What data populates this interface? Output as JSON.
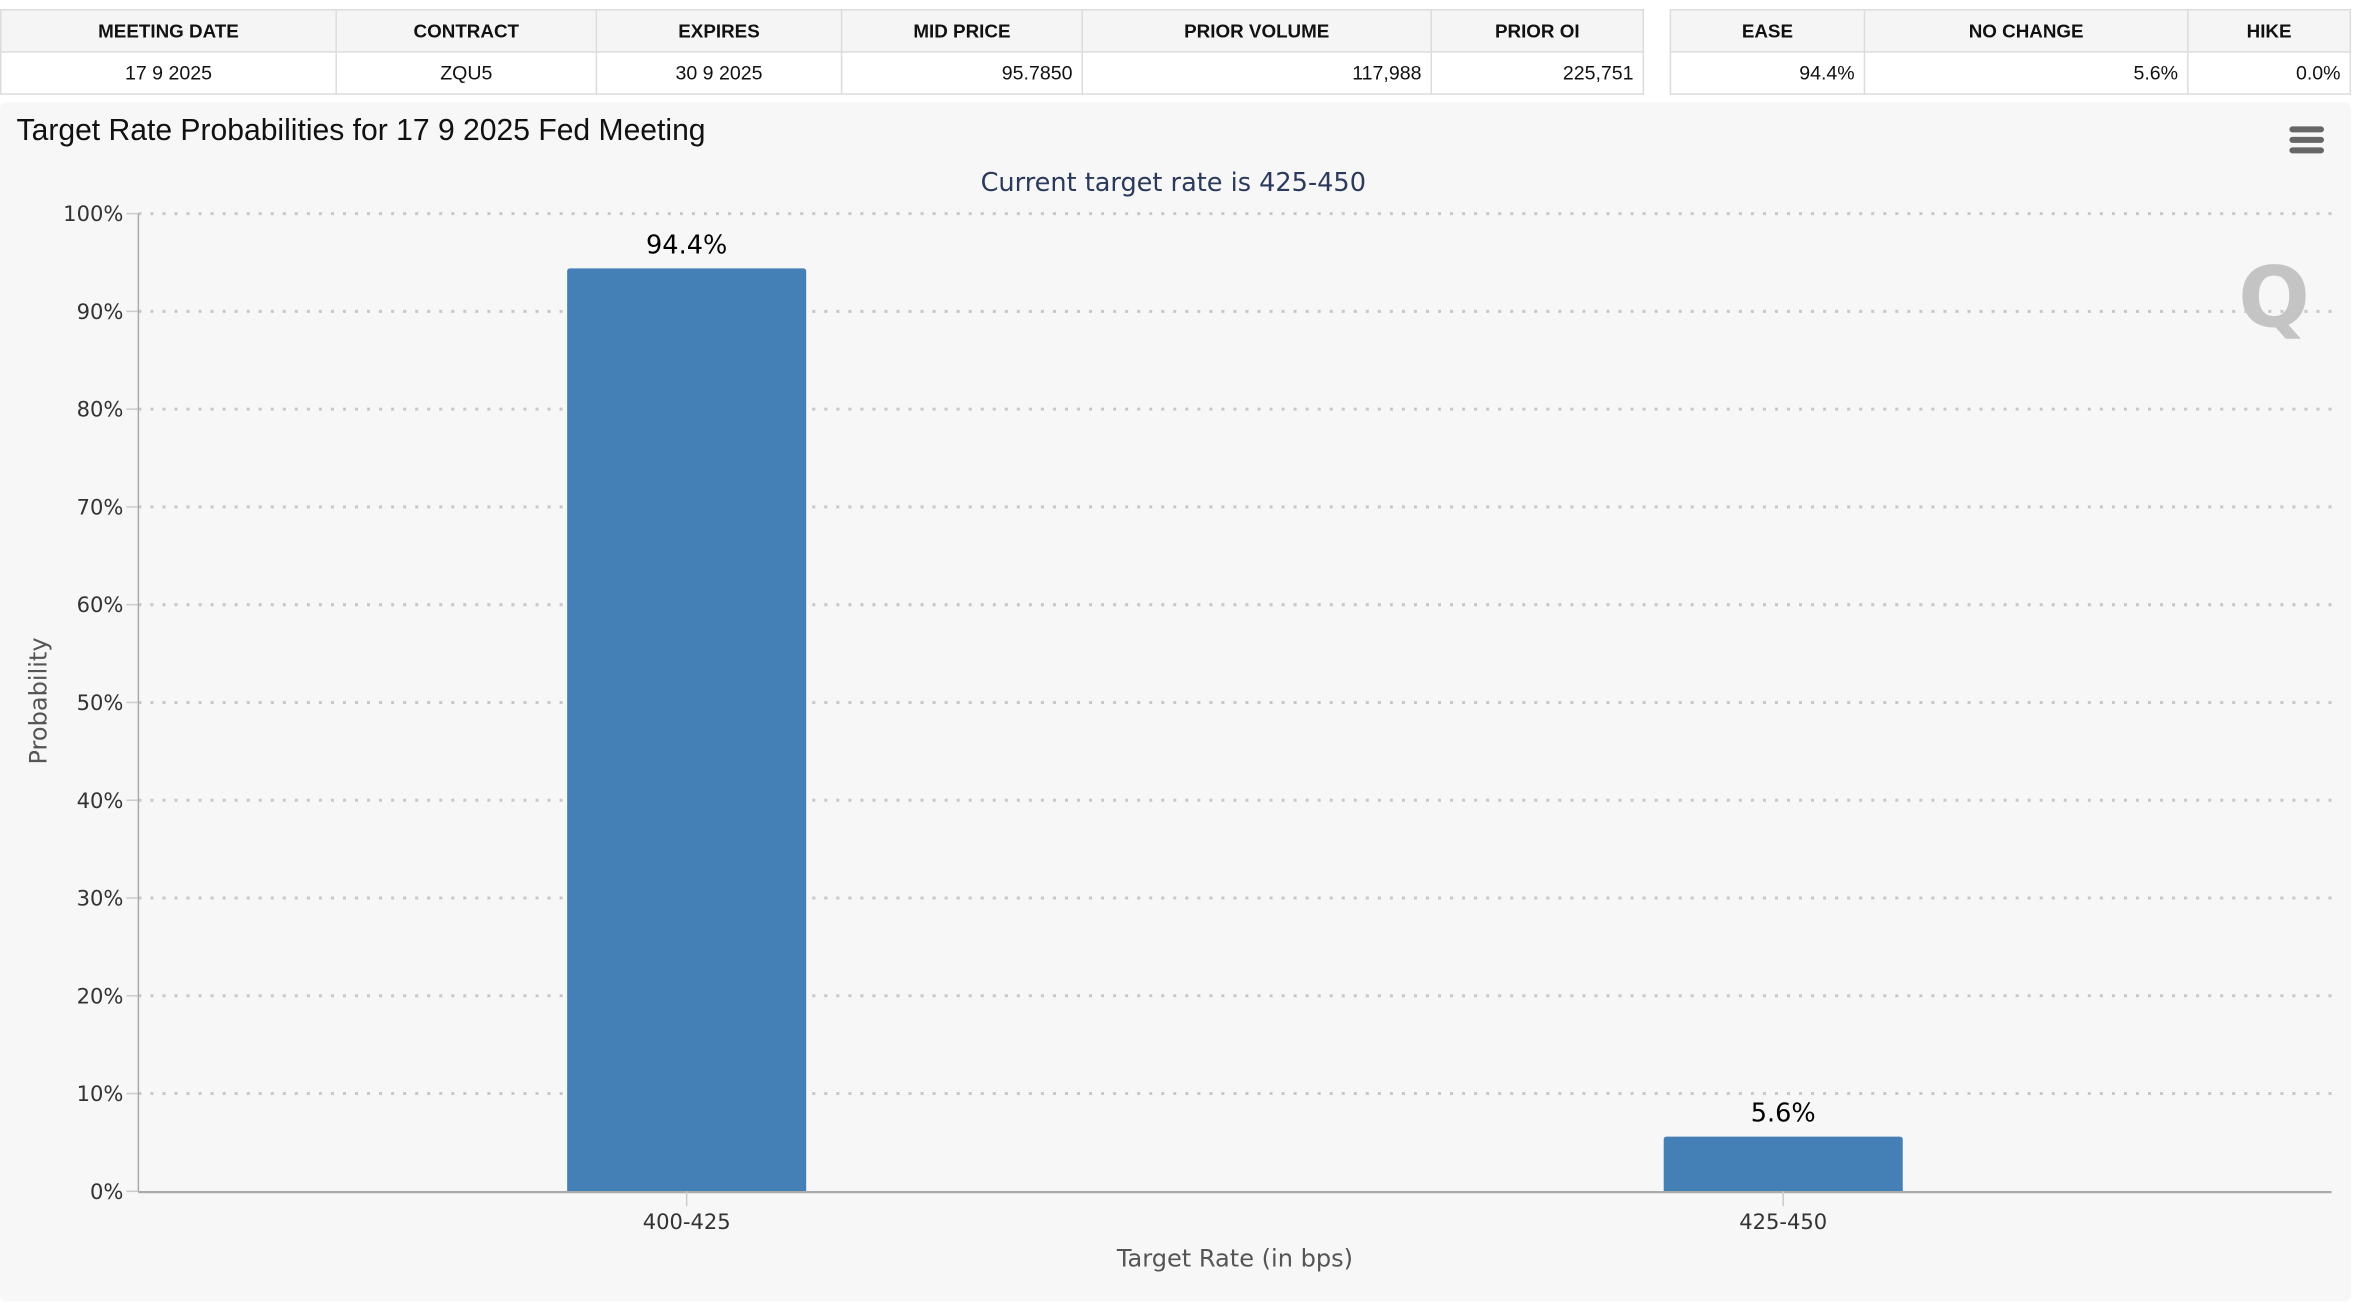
{
  "table_main": {
    "headers": [
      "MEETING DATE",
      "CONTRACT",
      "EXPIRES",
      "MID PRICE",
      "PRIOR VOLUME",
      "PRIOR OI"
    ],
    "row": [
      "17 9 2025",
      "ZQU5",
      "30 9 2025",
      "95.7850",
      "117,988",
      "225,751"
    ]
  },
  "table_prob": {
    "headers": [
      "EASE",
      "NO CHANGE",
      "HIKE"
    ],
    "row": [
      "94.4%",
      "5.6%",
      "0.0%"
    ]
  },
  "menu_icon": "hamburger-menu-icon",
  "watermark": "Q",
  "chart_data": {
    "type": "bar",
    "title": "Target Rate Probabilities for 17 9 2025 Fed Meeting",
    "subtitle": "Current target rate is 425-450",
    "categories": [
      "400-425",
      "425-450"
    ],
    "values": [
      94.4,
      5.6
    ],
    "data_labels": [
      "94.4%",
      "5.6%"
    ],
    "xlabel": "Target Rate (in bps)",
    "ylabel": "Probability",
    "ylim": [
      0,
      100
    ],
    "yticks": [
      "0%",
      "10%",
      "20%",
      "30%",
      "40%",
      "50%",
      "60%",
      "70%",
      "80%",
      "90%",
      "100%"
    ],
    "grid": true,
    "bar_color": "#4480b5"
  }
}
